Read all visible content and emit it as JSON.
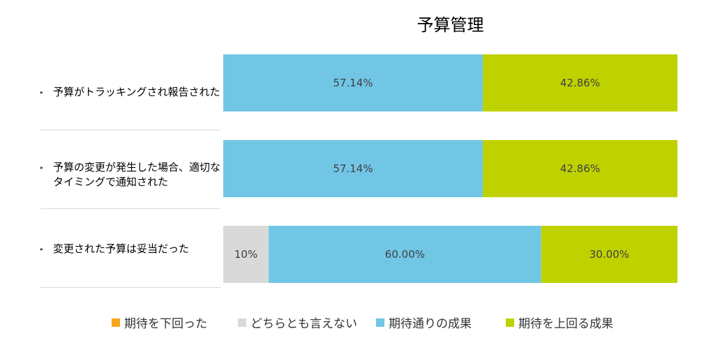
{
  "chart_data": {
    "type": "bar",
    "orientation": "horizontal",
    "stacked": true,
    "percent_stacked": true,
    "title": "予算管理",
    "categories": [
      "予算がトラッキングされ報告された",
      "予算の変更が発生した場合、適切なタイミングで通知された",
      "変更された予算は妥当だった"
    ],
    "series": [
      {
        "name": "期待を下回った",
        "color": "#f7a51c",
        "values": [
          0,
          0,
          0
        ],
        "labels": [
          "",
          "",
          ""
        ]
      },
      {
        "name": "どちらとも言えない",
        "color": "#d9d9d9",
        "values": [
          0,
          0,
          10
        ],
        "labels": [
          "",
          "",
          "10%"
        ]
      },
      {
        "name": "期待通りの成果",
        "color": "#71c6e6",
        "values": [
          57.14,
          57.14,
          60.0
        ],
        "labels": [
          "57.14%",
          "57.14%",
          "60.00%"
        ]
      },
      {
        "name": "期待を上回る成果",
        "color": "#bfd200",
        "values": [
          42.86,
          42.86,
          30.0
        ],
        "labels": [
          "42.86%",
          "42.86%",
          "30.00%"
        ]
      }
    ],
    "xlim": [
      0,
      100
    ],
    "legend_position": "bottom",
    "grid": false
  }
}
